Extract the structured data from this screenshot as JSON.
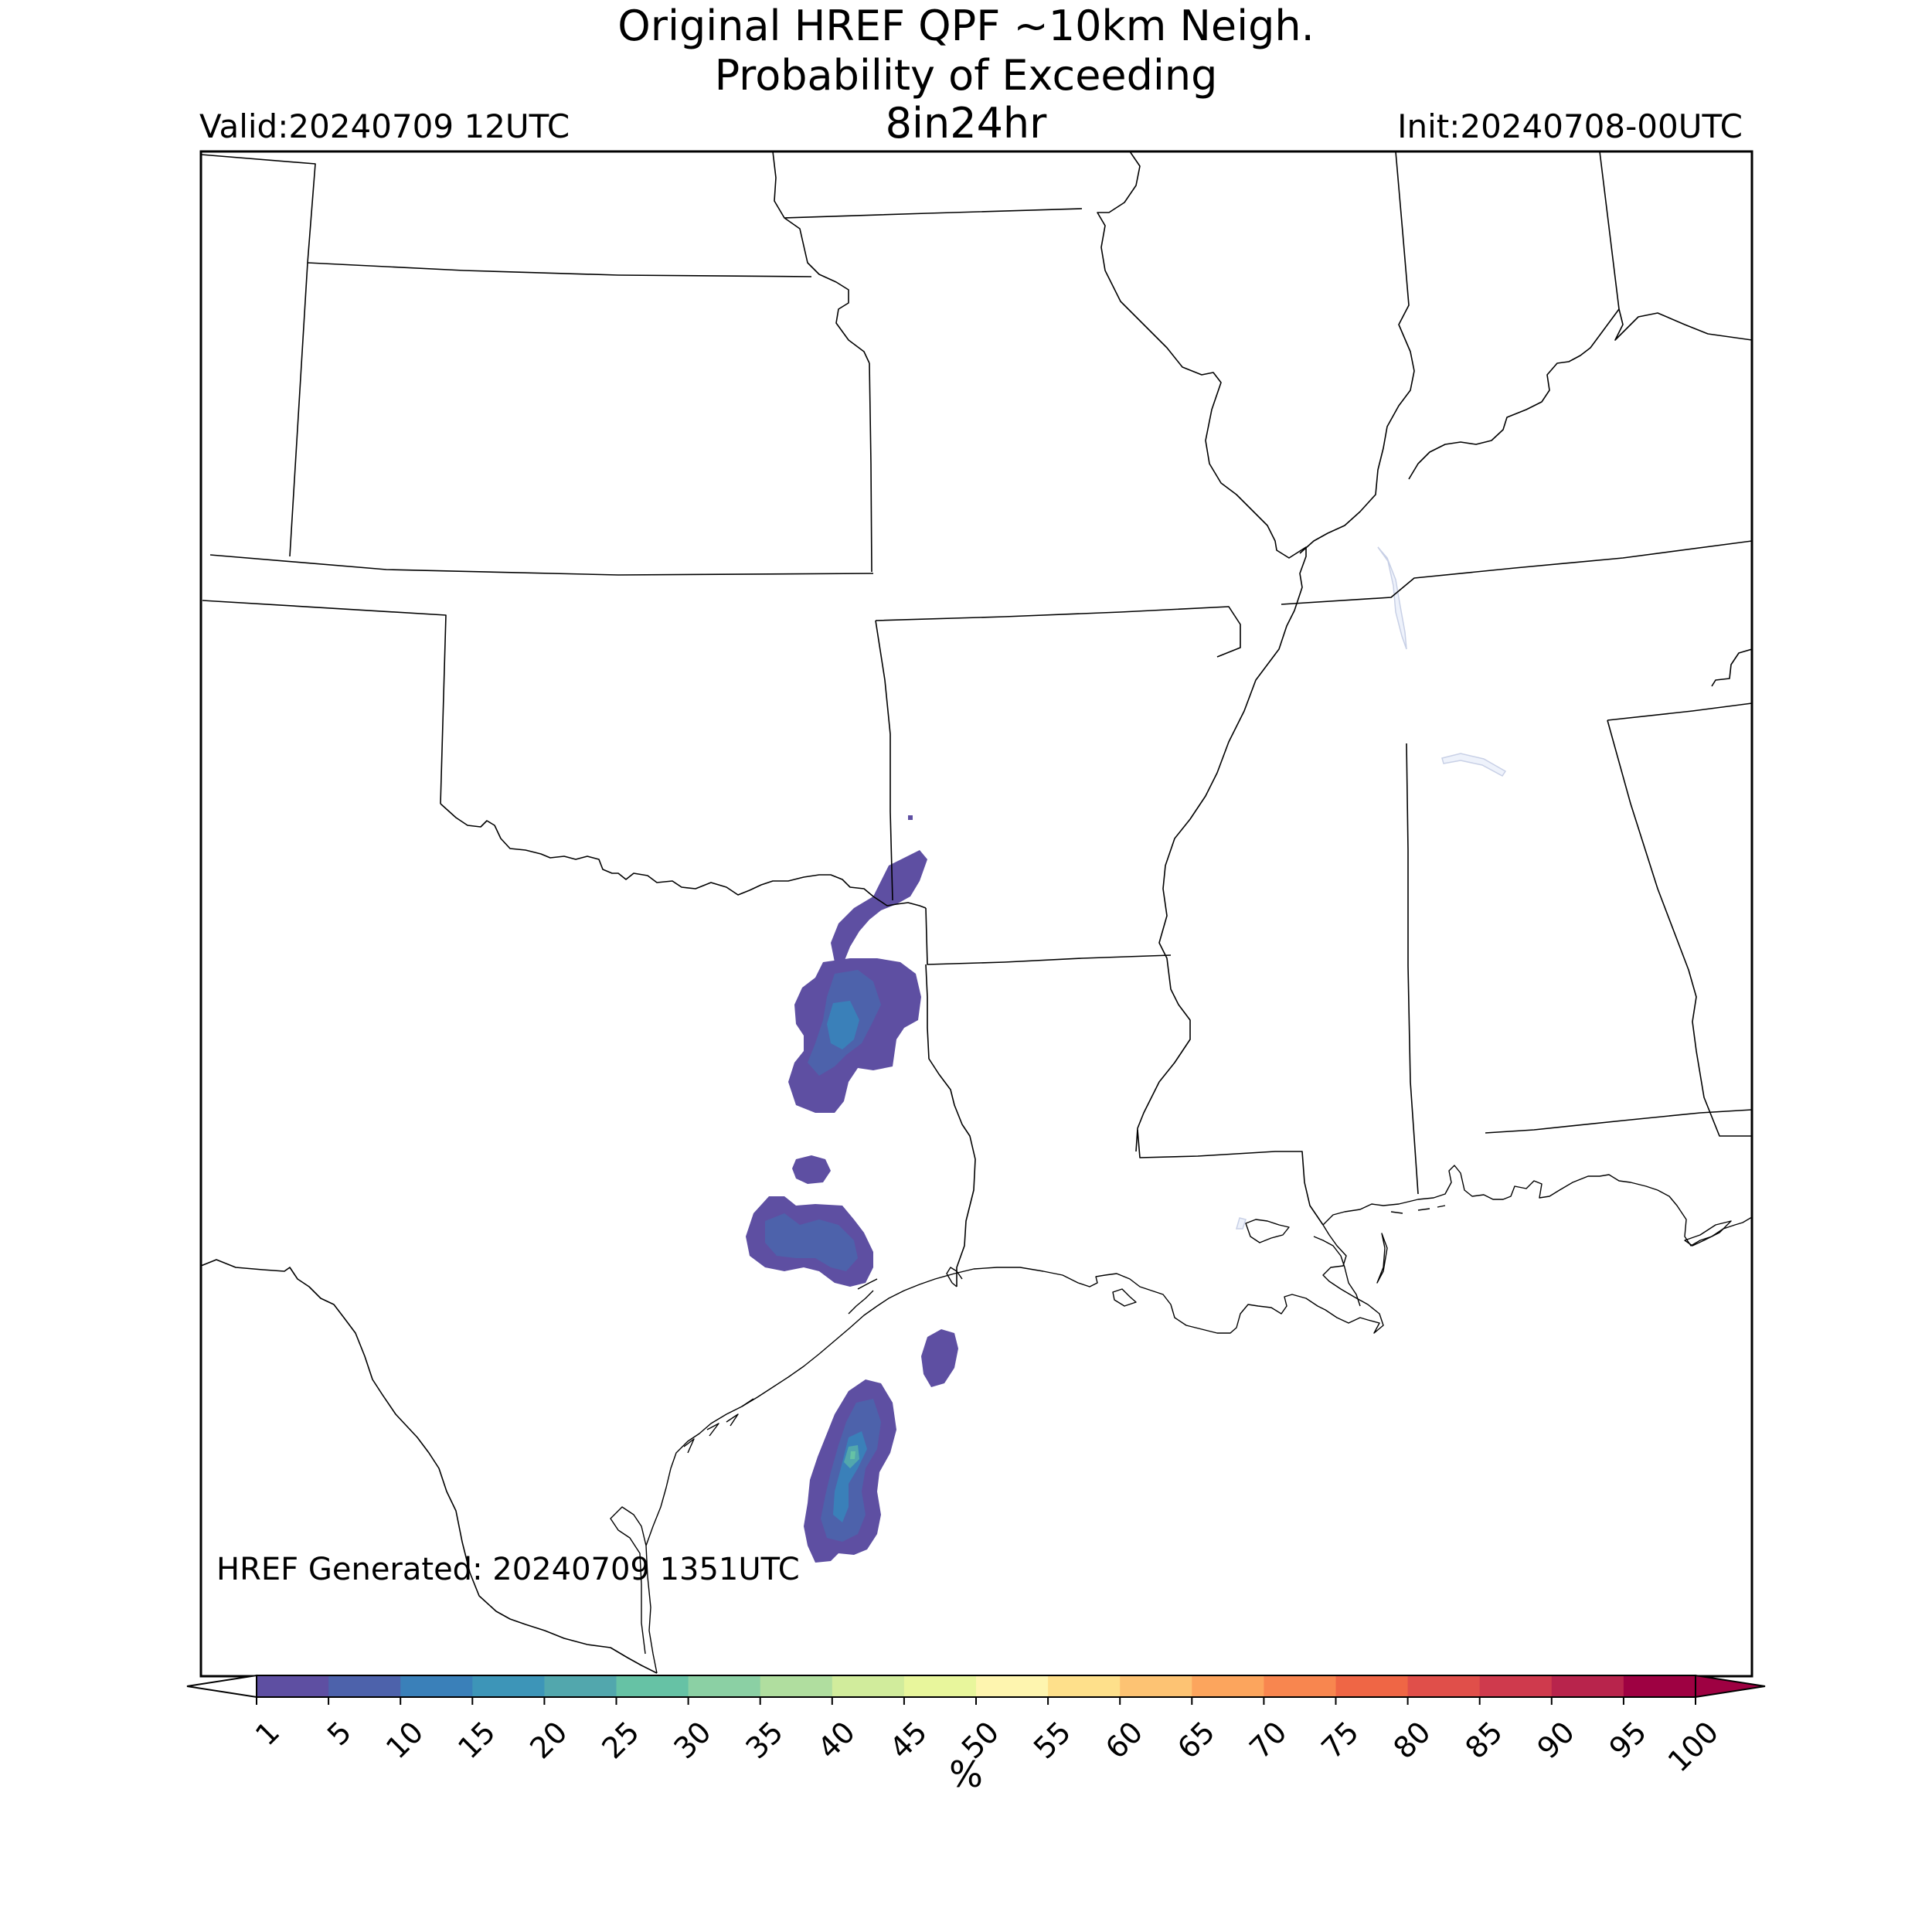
{
  "header": {
    "title_line1": "Original HREF QPF ~10km Neigh.",
    "title_line2": "Probability of Exceeding",
    "title_line3": "8in24hr",
    "valid": "Valid:20240709 12UTC",
    "init": "Init:20240708-00UTC"
  },
  "footer": {
    "generated": "HREF Generated: 20240709 1351UTC"
  },
  "colorbar": {
    "unit_label": "%",
    "ticks": [
      "1",
      "5",
      "10",
      "15",
      "20",
      "25",
      "30",
      "35",
      "40",
      "45",
      "50",
      "55",
      "60",
      "65",
      "70",
      "75",
      "80",
      "85",
      "90",
      "95",
      "100"
    ],
    "colors": [
      "#5e4fa2",
      "#4d62ab",
      "#3a80b9",
      "#3d95b8",
      "#52a7ad",
      "#66c2a5",
      "#8bd0a4",
      "#b0de9f",
      "#d1ec9c",
      "#e8f69c",
      "#fef5af",
      "#fee08b",
      "#fdc373",
      "#fca55d",
      "#f8864f",
      "#ef6645",
      "#e04f4a",
      "#cf3a4d",
      "#b8244c",
      "#9e0142"
    ],
    "under_color": "#ffffff",
    "over_color": "#9e0142"
  },
  "map": {
    "region": "South-central United States",
    "border_color": "#000000",
    "probability_areas": [
      {
        "name": "north-texas-oklahoma-border-cluster",
        "category": "1-5%"
      },
      {
        "name": "east-texas-cluster",
        "category": "1-15%"
      },
      {
        "name": "southeast-texas-cluster",
        "category": "1-10%"
      },
      {
        "name": "offshore-small-cell",
        "category": "1-5%"
      },
      {
        "name": "coastal-bend-cluster",
        "category": "1-25%"
      }
    ]
  }
}
